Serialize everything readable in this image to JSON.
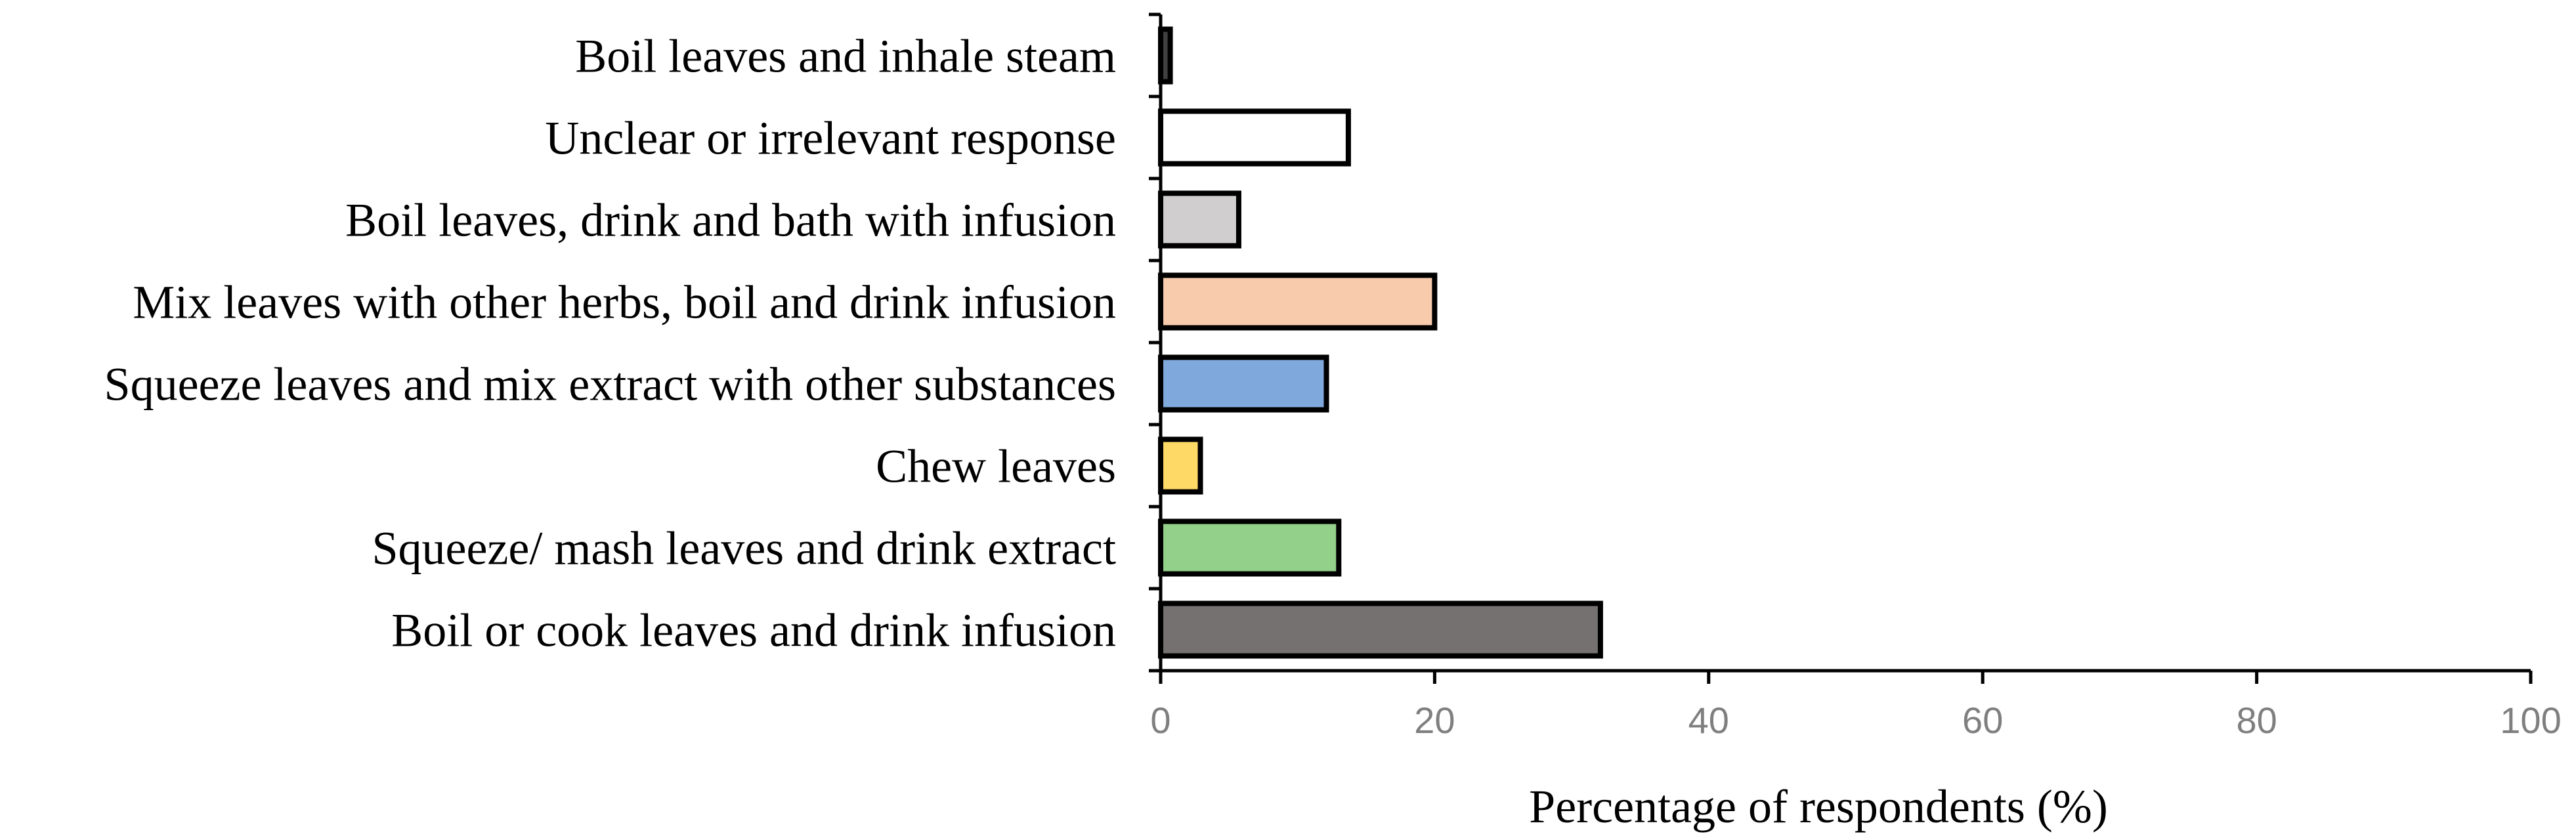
{
  "chart_data": {
    "type": "bar",
    "orientation": "horizontal",
    "categories": [
      "Boil leaves and inhale steam",
      "Unclear or irrelevant response",
      "Boil leaves, drink and bath with infusion",
      "Mix leaves with other herbs, boil and drink infusion",
      "Squeeze leaves and mix extract with other substances",
      "Chew leaves",
      "Squeeze/ mash leaves and drink extract",
      "Boil or cook leaves and drink infusion"
    ],
    "values": [
      0.7,
      13.7,
      5.7,
      20.0,
      12.1,
      2.9,
      13.0,
      32.1
    ],
    "colors": [
      "#404040",
      "#ffffff",
      "#d0cece",
      "#f8cbad",
      "#7fa9dc",
      "#ffd966",
      "#93d089",
      "#767171"
    ],
    "title": "",
    "xlabel": "Percentage of respondents (%)",
    "ylabel": "",
    "xlim": [
      0,
      100
    ],
    "xticks": [
      0,
      20,
      40,
      60,
      80,
      100
    ],
    "grid": false,
    "legend": false
  }
}
